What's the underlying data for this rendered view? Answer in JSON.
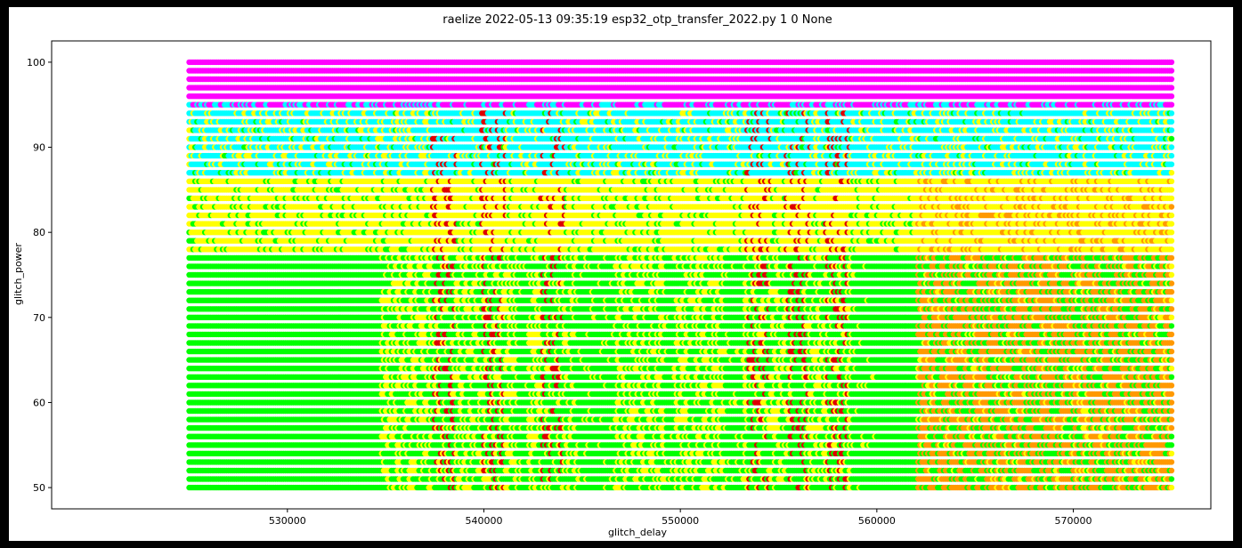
{
  "chart_data": {
    "type": "scatter",
    "title": "raelize 2022-05-13 09:35:19 esp32_otp_transfer_2022.py 1 0 None",
    "xlabel": "glitch_delay",
    "ylabel": "glitch_power",
    "xlim": [
      518000,
      577000
    ],
    "ylim": [
      47.5,
      102.5
    ],
    "x_range": [
      525000,
      575000
    ],
    "y_range": [
      50,
      100
    ],
    "x_ticks": [
      530000,
      540000,
      550000,
      560000,
      570000
    ],
    "y_ticks": [
      50,
      60,
      70,
      80,
      90,
      100
    ],
    "x_tick_labels": [
      "530000",
      "540000",
      "550000",
      "560000",
      "570000"
    ],
    "y_tick_labels": [
      "50",
      "60",
      "70",
      "80",
      "90",
      "100"
    ],
    "grid": false,
    "legend": "none",
    "series": [
      {
        "color": "#00ff00",
        "region": "background",
        "y_range": [
          50,
          77
        ]
      },
      {
        "color": "#ffff00",
        "region": "band",
        "y_range": [
          77,
          86
        ]
      },
      {
        "color": "#00ffff",
        "region": "band",
        "y_range": [
          86,
          95
        ]
      },
      {
        "color": "#ff00ff",
        "region": "band",
        "y_range": [
          95,
          100
        ]
      },
      {
        "color": "#ff9900",
        "region": "cluster",
        "x_range": [
          562000,
          575000
        ],
        "y_range": [
          50,
          77
        ]
      },
      {
        "color": "#ffff00",
        "region": "columns",
        "x_centers": [
          536000,
          538500,
          540500,
          543500,
          548000,
          551000,
          554500,
          557500
        ],
        "y_range": [
          50,
          77
        ]
      },
      {
        "color": "#dd0000",
        "region": "columns",
        "x_centers": [
          538000,
          540500,
          543500,
          554000,
          556000,
          558000
        ],
        "y_range": [
          50,
          95
        ]
      }
    ]
  }
}
